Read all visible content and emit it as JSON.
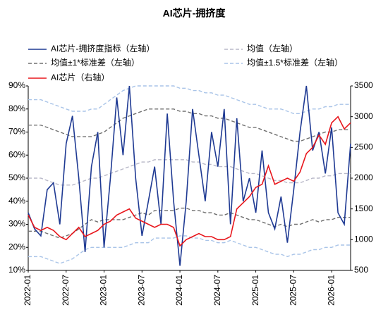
{
  "chart_data": {
    "type": "line",
    "title": "AI芯片-拥挤度",
    "categories": [
      "2022-01",
      null,
      null,
      null,
      null,
      null,
      "2022-07",
      null,
      null,
      null,
      null,
      null,
      "2023-01",
      null,
      null,
      null,
      null,
      null,
      "2023-07",
      null,
      null,
      null,
      null,
      null,
      "2024-01",
      null,
      null,
      null,
      null,
      null,
      "2024-07",
      null,
      null,
      null,
      null,
      null,
      "2025-01",
      null,
      null,
      null,
      null,
      null,
      "2025-07",
      null,
      null,
      null,
      null,
      null,
      "2026-01",
      null,
      null,
      null
    ],
    "series": [
      {
        "name": "AI芯片-拥挤度指标（左轴）",
        "color": "#1f3a93",
        "dash": false,
        "values": [
          35,
          28,
          25,
          45,
          48,
          30,
          65,
          77,
          50,
          18,
          55,
          70,
          20,
          50,
          85,
          60,
          90,
          50,
          25,
          40,
          55,
          30,
          78,
          40,
          12,
          40,
          80,
          60,
          40,
          70,
          55,
          80,
          30,
          76,
          40,
          50,
          35,
          62,
          35,
          28,
          42,
          22,
          45,
          70,
          90,
          62,
          70,
          52,
          72,
          35,
          30,
          65
        ]
      },
      {
        "name": "均值（左轴）",
        "color": "#b8b8c8",
        "dash": true,
        "values": [
          50,
          50,
          50,
          49,
          48,
          47,
          47,
          47,
          48,
          49,
          50,
          50,
          51,
          52,
          53,
          54,
          55,
          56,
          57,
          57,
          58,
          58,
          58,
          58,
          58,
          58,
          57,
          57,
          56,
          56,
          55,
          55,
          55,
          54,
          53,
          52,
          52,
          51,
          50,
          49,
          49,
          48,
          48,
          48,
          49,
          50,
          50,
          51,
          51,
          52,
          52,
          52
        ]
      },
      {
        "name": "均值±1*标准差（左轴）",
        "color": "#707070",
        "dash": true,
        "values": [
          73,
          73,
          73,
          72,
          71,
          70,
          69,
          68,
          68,
          68,
          68,
          69,
          70,
          72,
          74,
          76,
          77,
          78,
          79,
          80,
          80,
          80,
          80,
          80,
          79,
          79,
          78,
          78,
          77,
          77,
          76,
          76,
          75,
          74,
          73,
          72,
          72,
          71,
          70,
          69,
          68,
          67,
          66,
          66,
          67,
          68,
          69,
          70,
          70,
          71,
          71,
          71
        ],
        "lower": [
          27,
          27,
          27,
          26,
          25,
          24,
          25,
          26,
          28,
          30,
          32,
          31,
          32,
          32,
          32,
          32,
          33,
          34,
          35,
          34,
          36,
          36,
          36,
          36,
          37,
          37,
          36,
          36,
          35,
          35,
          34,
          34,
          35,
          34,
          33,
          32,
          32,
          31,
          30,
          29,
          30,
          29,
          30,
          30,
          31,
          32,
          31,
          32,
          32,
          33,
          33,
          33
        ]
      },
      {
        "name": "均值±1.5*标准差（左轴）",
        "color": "#a9c4e8",
        "dash": true,
        "values": [
          84,
          84,
          84,
          83,
          82,
          81,
          80,
          79,
          79,
          79,
          80,
          80,
          82,
          84,
          86,
          88,
          89,
          90,
          90,
          90,
          90,
          90,
          90,
          90,
          89,
          89,
          88,
          88,
          87,
          87,
          86,
          86,
          85,
          84,
          83,
          82,
          82,
          81,
          80,
          80,
          80,
          79,
          78,
          78,
          79,
          80,
          80,
          81,
          81,
          82,
          82,
          82
        ],
        "lower": [
          16,
          16,
          16,
          15,
          14,
          13,
          14,
          15,
          17,
          19,
          20,
          20,
          20,
          20,
          20,
          20,
          21,
          22,
          22,
          22,
          24,
          24,
          24,
          24,
          25,
          25,
          24,
          24,
          23,
          23,
          22,
          22,
          23,
          22,
          21,
          20,
          20,
          19,
          18,
          17,
          17,
          16,
          17,
          17,
          18,
          19,
          19,
          20,
          20,
          21,
          21,
          21
        ]
      },
      {
        "name": "AI芯片（右轴）",
        "color": "#e8161c",
        "dash": false,
        "axis": "y2",
        "values": [
          1400,
          1200,
          1150,
          1200,
          1150,
          1050,
          1000,
          1100,
          1200,
          1050,
          1100,
          1150,
          1250,
          1300,
          1400,
          1450,
          1500,
          1350,
          1300,
          1250,
          1200,
          1250,
          1250,
          1200,
          900,
          1000,
          1050,
          1100,
          1050,
          1050,
          1000,
          1000,
          1050,
          1500,
          1600,
          1700,
          1850,
          1900,
          2200,
          1900,
          1950,
          2000,
          1950,
          2100,
          2400,
          2500,
          2700,
          2550,
          2900,
          3000,
          2800,
          2900
        ]
      }
    ],
    "ylim": [
      10,
      90
    ],
    "yticks": [
      {
        "value": 10,
        "label": "10%"
      },
      {
        "value": 20,
        "label": "20%"
      },
      {
        "value": 30,
        "label": "30%"
      },
      {
        "value": 40,
        "label": "40%"
      },
      {
        "value": 50,
        "label": "50%"
      },
      {
        "value": 60,
        "label": "60%"
      },
      {
        "value": 70,
        "label": "70%"
      },
      {
        "value": 80,
        "label": "80%"
      },
      {
        "value": 90,
        "label": "90%"
      }
    ],
    "y2lim": [
      500,
      3500
    ],
    "y2ticks": [
      500,
      1000,
      1500,
      2000,
      2500,
      3000,
      3500
    ],
    "grid": false
  }
}
